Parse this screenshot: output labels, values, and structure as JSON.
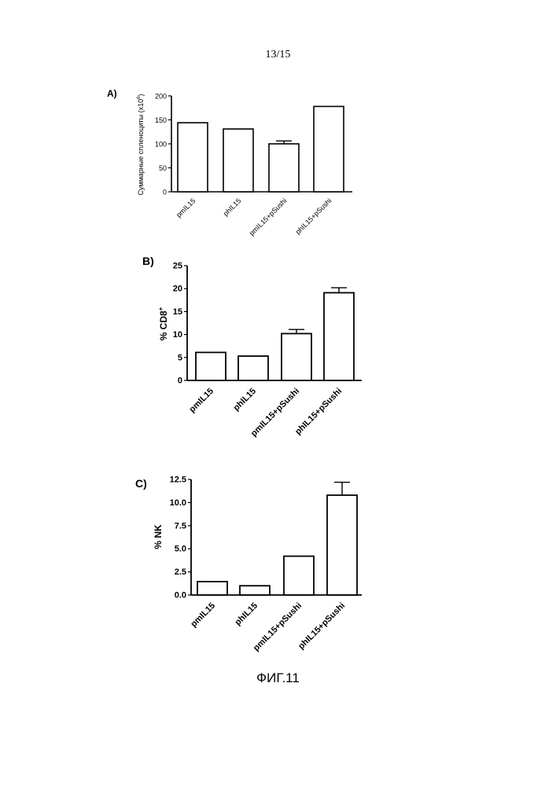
{
  "page": {
    "number": "13/15",
    "caption": "ФИГ.11"
  },
  "chart_data": [
    {
      "type": "bar",
      "panel": "A)",
      "title": "",
      "xlabel": "",
      "ylabel": "Суммарные спленоциты (x10",
      "ylabel_sup": "6",
      "ylabel_end": ")",
      "categories": [
        "pmIL15",
        "phIL15",
        "pmIL15+pSushi",
        "phIL15+pSushi"
      ],
      "values": [
        144,
        131,
        100,
        178
      ],
      "errors": [
        0,
        0,
        6,
        0
      ],
      "ylim": [
        0,
        200
      ],
      "yticks": [
        "0",
        "50",
        "100",
        "150",
        "200"
      ],
      "grid": false
    },
    {
      "type": "bar",
      "panel": "B)",
      "title": "",
      "xlabel": "",
      "ylabel": "% CD8",
      "ylabel_sup": "+",
      "categories": [
        "pmIL15",
        "phIL15",
        "pmIL15+pSushi",
        "phIL15+pSushi"
      ],
      "values": [
        6.1,
        5.3,
        10.2,
        19.1
      ],
      "errors": [
        0,
        0,
        0.9,
        1.1
      ],
      "ylim": [
        0,
        25
      ],
      "yticks": [
        "0",
        "5",
        "10",
        "15",
        "20",
        "25"
      ],
      "grid": false
    },
    {
      "type": "bar",
      "panel": "C)",
      "title": "",
      "xlabel": "",
      "ylabel": "% NK",
      "categories": [
        "pmIL15",
        "phIL15",
        "pmIL15+pSushi",
        "phIL15+pSushi"
      ],
      "values": [
        1.45,
        1.0,
        4.2,
        10.8
      ],
      "errors": [
        0,
        0,
        0,
        1.4
      ],
      "ylim": [
        0,
        12.5
      ],
      "yticks": [
        "0.0",
        "2.5",
        "5.0",
        "7.5",
        "10.0",
        "12.5"
      ],
      "grid": false
    }
  ]
}
